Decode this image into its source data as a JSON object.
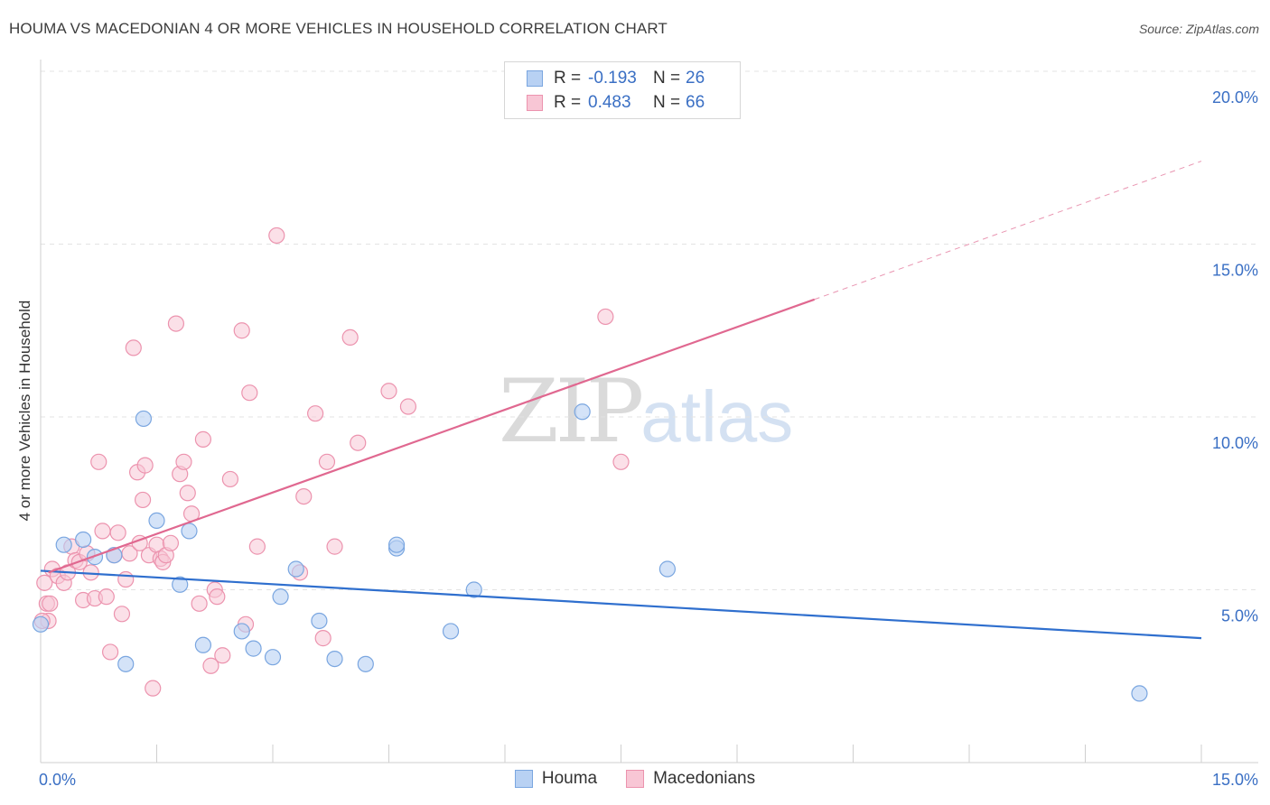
{
  "header": {
    "title": "HOUMA VS MACEDONIAN 4 OR MORE VEHICLES IN HOUSEHOLD CORRELATION CHART",
    "source": "Source: ZipAtlas.com"
  },
  "watermark": {
    "zip": "ZIP",
    "atlas": "atlas"
  },
  "legend": {
    "rows": [
      {
        "r_label": "R =",
        "r_value": "-0.193",
        "n_label": "N =",
        "n_value": "26"
      },
      {
        "r_label": "R =",
        "r_value": "0.483",
        "n_label": "N =",
        "n_value": "66"
      }
    ]
  },
  "bottom_legend": {
    "houma": "Houma",
    "macedonians": "Macedonians"
  },
  "colors": {
    "houma_fill": "#b8d1f3",
    "houma_stroke": "#7aa6e0",
    "houma_line": "#2f6fce",
    "mac_fill": "#f8c6d5",
    "mac_stroke": "#ec93ae",
    "mac_line": "#e06890",
    "tick_label": "#3a6fc4"
  },
  "chart_data": {
    "type": "scatter",
    "title": "HOUMA VS MACEDONIAN 4 OR MORE VEHICLES IN HOUSEHOLD CORRELATION CHART",
    "xlabel": "",
    "ylabel": "4 or more Vehicles in Household",
    "xlim": [
      0,
      15
    ],
    "ylim": [
      0,
      20
    ],
    "x_tick_labels": [
      "0.0%",
      "15.0%"
    ],
    "y_ticks": [
      5,
      10,
      15,
      20
    ],
    "y_tick_labels": [
      "5.0%",
      "10.0%",
      "15.0%",
      "20.0%"
    ],
    "grid": true,
    "series": [
      {
        "name": "Houma",
        "points": [
          [
            0.0,
            4.0
          ],
          [
            0.3,
            6.3
          ],
          [
            0.55,
            6.45
          ],
          [
            0.7,
            5.95
          ],
          [
            0.95,
            6.0
          ],
          [
            1.1,
            2.85
          ],
          [
            1.33,
            9.95
          ],
          [
            1.5,
            7.0
          ],
          [
            1.8,
            5.15
          ],
          [
            1.92,
            6.7
          ],
          [
            2.1,
            3.4
          ],
          [
            2.6,
            3.8
          ],
          [
            2.75,
            3.3
          ],
          [
            3.0,
            3.05
          ],
          [
            3.1,
            4.8
          ],
          [
            3.3,
            5.6
          ],
          [
            3.6,
            4.1
          ],
          [
            3.8,
            3.0
          ],
          [
            4.2,
            2.85
          ],
          [
            4.6,
            6.2
          ],
          [
            4.6,
            6.3
          ],
          [
            5.3,
            3.8
          ],
          [
            5.6,
            5.0
          ],
          [
            7.0,
            10.15
          ],
          [
            8.1,
            5.6
          ],
          [
            14.2,
            2.0
          ]
        ],
        "trend": {
          "x": [
            0,
            15
          ],
          "y": [
            5.55,
            3.6
          ]
        }
      },
      {
        "name": "Macedonians",
        "points": [
          [
            0.05,
            5.2
          ],
          [
            0.08,
            4.6
          ],
          [
            0.1,
            4.1
          ],
          [
            0.15,
            5.6
          ],
          [
            0.22,
            5.4
          ],
          [
            0.3,
            5.2
          ],
          [
            0.35,
            5.5
          ],
          [
            0.4,
            6.25
          ],
          [
            0.45,
            5.85
          ],
          [
            0.5,
            5.8
          ],
          [
            0.55,
            4.7
          ],
          [
            0.6,
            6.05
          ],
          [
            0.65,
            5.5
          ],
          [
            0.7,
            4.75
          ],
          [
            0.75,
            8.7
          ],
          [
            0.8,
            6.7
          ],
          [
            0.85,
            4.8
          ],
          [
            0.9,
            3.2
          ],
          [
            0.95,
            6.0
          ],
          [
            1.0,
            6.65
          ],
          [
            1.05,
            4.3
          ],
          [
            1.1,
            5.3
          ],
          [
            1.15,
            6.05
          ],
          [
            1.2,
            12.0
          ],
          [
            1.25,
            8.4
          ],
          [
            1.28,
            6.35
          ],
          [
            1.32,
            7.6
          ],
          [
            1.35,
            8.6
          ],
          [
            1.4,
            6.0
          ],
          [
            1.45,
            2.15
          ],
          [
            1.5,
            6.3
          ],
          [
            1.55,
            5.9
          ],
          [
            1.58,
            5.8
          ],
          [
            1.62,
            6.0
          ],
          [
            1.68,
            6.35
          ],
          [
            1.75,
            12.7
          ],
          [
            1.8,
            8.35
          ],
          [
            1.85,
            8.7
          ],
          [
            1.9,
            7.8
          ],
          [
            1.95,
            7.2
          ],
          [
            2.05,
            4.6
          ],
          [
            2.1,
            9.35
          ],
          [
            2.2,
            2.8
          ],
          [
            2.25,
            5.0
          ],
          [
            2.28,
            4.8
          ],
          [
            2.35,
            3.1
          ],
          [
            2.45,
            8.2
          ],
          [
            2.6,
            12.5
          ],
          [
            2.65,
            4.0
          ],
          [
            2.7,
            10.7
          ],
          [
            2.8,
            6.25
          ],
          [
            3.05,
            15.25
          ],
          [
            3.35,
            5.5
          ],
          [
            3.4,
            7.7
          ],
          [
            3.55,
            10.1
          ],
          [
            3.65,
            3.6
          ],
          [
            3.7,
            8.7
          ],
          [
            3.8,
            6.25
          ],
          [
            4.0,
            12.3
          ],
          [
            4.1,
            9.25
          ],
          [
            4.5,
            10.75
          ],
          [
            4.75,
            10.3
          ],
          [
            7.3,
            12.9
          ],
          [
            7.5,
            8.7
          ],
          [
            0.02,
            4.1
          ],
          [
            0.12,
            4.6
          ]
        ],
        "trend": {
          "x": [
            0.1,
            10.0
          ],
          "y": [
            5.5,
            13.4
          ]
        },
        "trend_extension": {
          "x": [
            10.0,
            15.0
          ],
          "y": [
            13.4,
            17.4
          ]
        }
      }
    ]
  }
}
